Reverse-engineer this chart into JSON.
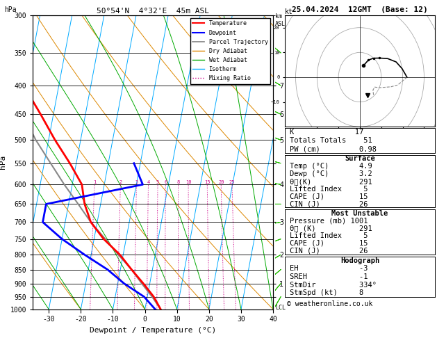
{
  "title_left": "50°54'N  4°32'E  45m ASL",
  "title_right": "25.04.2024  12GMT  (Base: 12)",
  "xlabel": "Dewpoint / Temperature (°C)",
  "ylabel_left": "hPa",
  "bg_color": "#ffffff",
  "pressure_levels": [
    300,
    350,
    400,
    450,
    500,
    550,
    600,
    650,
    700,
    750,
    800,
    850,
    900,
    950,
    1000
  ],
  "xlim": [
    -35,
    40
  ],
  "skew_factor": 33.0,
  "temp_data": {
    "pressure": [
      1000,
      950,
      900,
      850,
      800,
      750,
      700,
      650,
      600,
      550,
      500,
      450,
      400,
      350,
      300
    ],
    "temp": [
      4.9,
      2.0,
      -2.0,
      -6.5,
      -11.0,
      -17.0,
      -22.0,
      -25.0,
      -27.0,
      -32.0,
      -38.0,
      -44.0,
      -51.0,
      -56.0,
      -57.0
    ],
    "color": "#ff0000",
    "lw": 2.0
  },
  "dewp_data": {
    "pressure": [
      1000,
      950,
      900,
      850,
      800,
      750,
      700,
      650,
      600,
      550
    ],
    "dewp": [
      3.2,
      -1.0,
      -8.0,
      -14.0,
      -22.0,
      -30.0,
      -37.0,
      -37.0,
      -8.0,
      -12.0
    ],
    "color": "#0000ff",
    "lw": 2.0
  },
  "parcel_data": {
    "pressure": [
      1000,
      950,
      900,
      850,
      800,
      750,
      700,
      650,
      600,
      550,
      500,
      450,
      400,
      350,
      300
    ],
    "temp": [
      4.9,
      1.5,
      -2.5,
      -6.5,
      -11.5,
      -16.5,
      -22.0,
      -27.0,
      -32.5,
      -38.0,
      -44.0,
      -49.5,
      -55.5,
      -62.0,
      -68.0
    ],
    "color": "#888888",
    "lw": 1.5
  },
  "isotherm_color": "#00aaff",
  "isotherm_lw": 0.7,
  "dry_adiabat_color": "#dd8800",
  "dry_adiabat_lw": 0.7,
  "wet_adiabat_color": "#00aa00",
  "wet_adiabat_lw": 0.7,
  "mixing_ratio_color": "#cc0088",
  "mixing_ratio_lw": 0.7,
  "mixing_ratio_values": [
    1,
    2,
    3,
    4,
    5,
    6,
    8,
    10,
    15,
    20,
    25
  ],
  "km_ticks_p": [
    400,
    450,
    500,
    550,
    600,
    700,
    800,
    900,
    950
  ],
  "km_ticks_v": [
    "7",
    "6",
    "5",
    "",
    "4",
    "3",
    "2",
    "1",
    ""
  ],
  "lcl_pressure": 993,
  "surface_stats": {
    "K": 17,
    "TT": 51,
    "PW": "0.98",
    "Temp": "4.9",
    "Dewp": "3.2",
    "theta_e": 291,
    "LiftedIndex": 5,
    "CAPE": 15,
    "CIN": 26
  },
  "unstable_stats": {
    "Pressure": 1001,
    "theta_e": 291,
    "LiftedIndex": 5,
    "CAPE": 15,
    "CIN": 26
  },
  "hodograph_stats": {
    "EH": -3,
    "SREH": -1,
    "StmDir": 334,
    "StmSpd": 8
  },
  "wind_speeds_kt": [
    5,
    8,
    10,
    12,
    15,
    18,
    20,
    22,
    18,
    15,
    12,
    10,
    8,
    8,
    10
  ],
  "wind_dirs_deg": [
    200,
    210,
    220,
    230,
    240,
    250,
    260,
    270,
    280,
    285,
    290,
    295,
    300,
    310,
    320
  ],
  "barb_pressures": [
    1000,
    950,
    900,
    850,
    800,
    750,
    700,
    650,
    600,
    550,
    500,
    450,
    400,
    350,
    300
  ]
}
